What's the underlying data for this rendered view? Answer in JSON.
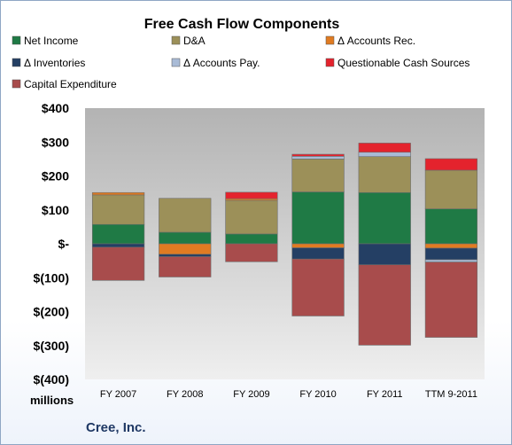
{
  "chart_data": {
    "type": "bar",
    "stacked": true,
    "title": "Free Cash Flow Components",
    "unit_label": "millions",
    "company": "Cree, Inc.",
    "categories": [
      "FY 2007",
      "FY 2008",
      "FY 2009",
      "FY 2010",
      "FY 2011",
      "TTM 9-2011"
    ],
    "y_ticks": [
      "$400",
      "$300",
      "$200",
      "$100",
      "$-",
      "$(100)",
      "$(200)",
      "$(300)",
      "$(400)"
    ],
    "y_tick_values": [
      400,
      300,
      200,
      100,
      0,
      -100,
      -200,
      -300,
      -400
    ],
    "ylim": [
      -400,
      400
    ],
    "grid": false,
    "legend_position": "top",
    "series": [
      {
        "name": "Net Income",
        "color": "#1f7a45",
        "values": [
          57,
          34,
          29,
          153,
          151,
          103
        ]
      },
      {
        "name": "D&A",
        "color": "#9c9059",
        "values": [
          87,
          100,
          99,
          97,
          106,
          114
        ]
      },
      {
        "name": "Δ Accounts Rec.",
        "color": "#e07b22",
        "values": [
          7,
          -31,
          5,
          -12,
          0,
          -13
        ]
      },
      {
        "name": "Δ Inventories",
        "color": "#243f64",
        "values": [
          -10,
          -7,
          0,
          -33,
          -62,
          -34
        ]
      },
      {
        "name": "Δ Accounts Pay.",
        "color": "#a9bbd6",
        "values": [
          0,
          0,
          0,
          8,
          13,
          -7
        ]
      },
      {
        "name": "Questionable Cash Sources",
        "color": "#e4232d",
        "values": [
          0,
          0,
          19,
          6,
          27,
          34
        ]
      },
      {
        "name": "Capital Expenditure",
        "color": "#a84c4c",
        "values": [
          -98,
          -60,
          -53,
          -168,
          -237,
          -222
        ]
      }
    ]
  }
}
